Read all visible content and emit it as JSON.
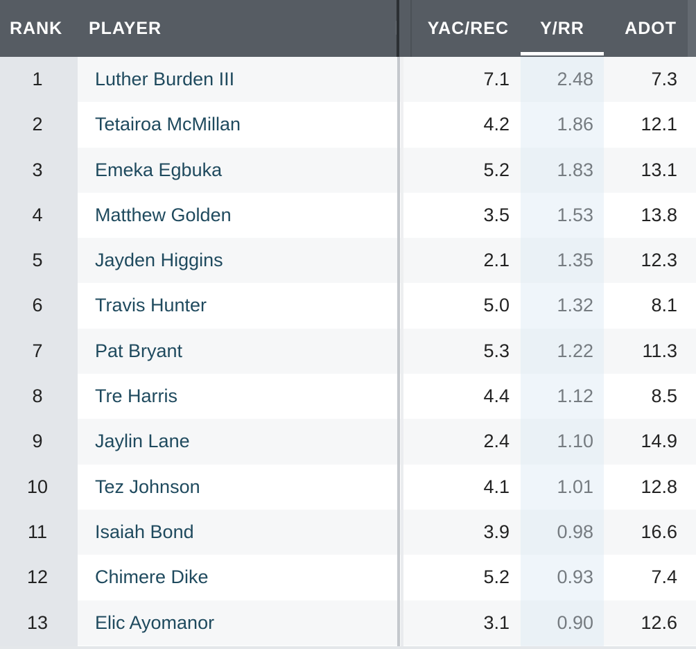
{
  "header": {
    "rank": "RANK",
    "player": "PLAYER",
    "yac_rec": "YAC/REC",
    "y_rr": "Y/RR",
    "adot": "ADOT"
  },
  "sort": {
    "column": "Y/RR",
    "direction": "descending"
  },
  "colors": {
    "header_bg": "#565c63",
    "player_link": "#1f4a5e",
    "rank_column_bg": "#e3e6ea"
  },
  "rows": [
    {
      "rank": "1",
      "player": "Luther Burden III",
      "yac_rec": "7.1",
      "y_rr": "2.48",
      "adot": "7.3"
    },
    {
      "rank": "2",
      "player": "Tetairoa McMillan",
      "yac_rec": "4.2",
      "y_rr": "1.86",
      "adot": "12.1"
    },
    {
      "rank": "3",
      "player": "Emeka Egbuka",
      "yac_rec": "5.2",
      "y_rr": "1.83",
      "adot": "13.1"
    },
    {
      "rank": "4",
      "player": "Matthew Golden",
      "yac_rec": "3.5",
      "y_rr": "1.53",
      "adot": "13.8"
    },
    {
      "rank": "5",
      "player": "Jayden Higgins",
      "yac_rec": "2.1",
      "y_rr": "1.35",
      "adot": "12.3"
    },
    {
      "rank": "6",
      "player": "Travis Hunter",
      "yac_rec": "5.0",
      "y_rr": "1.32",
      "adot": "8.1"
    },
    {
      "rank": "7",
      "player": "Pat Bryant",
      "yac_rec": "5.3",
      "y_rr": "1.22",
      "adot": "11.3"
    },
    {
      "rank": "8",
      "player": "Tre Harris",
      "yac_rec": "4.4",
      "y_rr": "1.12",
      "adot": "8.5"
    },
    {
      "rank": "9",
      "player": "Jaylin Lane",
      "yac_rec": "2.4",
      "y_rr": "1.10",
      "adot": "14.9"
    },
    {
      "rank": "10",
      "player": "Tez Johnson",
      "yac_rec": "4.1",
      "y_rr": "1.01",
      "adot": "12.8"
    },
    {
      "rank": "11",
      "player": "Isaiah Bond",
      "yac_rec": "3.9",
      "y_rr": "0.98",
      "adot": "16.6"
    },
    {
      "rank": "12",
      "player": "Chimere Dike",
      "yac_rec": "5.2",
      "y_rr": "0.93",
      "adot": "7.4"
    },
    {
      "rank": "13",
      "player": "Elic Ayomanor",
      "yac_rec": "3.1",
      "y_rr": "0.90",
      "adot": "12.6"
    }
  ]
}
